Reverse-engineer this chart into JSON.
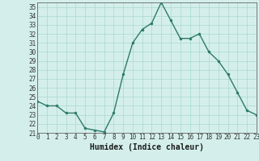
{
  "x": [
    0,
    1,
    2,
    3,
    4,
    5,
    6,
    7,
    8,
    9,
    10,
    11,
    12,
    13,
    14,
    15,
    16,
    17,
    18,
    19,
    20,
    21,
    22,
    23
  ],
  "y": [
    24.5,
    24.0,
    24.0,
    23.2,
    23.2,
    21.5,
    21.3,
    21.1,
    23.2,
    27.5,
    31.0,
    32.5,
    33.2,
    35.5,
    33.5,
    31.5,
    31.5,
    32.0,
    30.0,
    29.0,
    27.5,
    25.5,
    23.5,
    23.0
  ],
  "line_color": "#2d7a6a",
  "marker_color": "#2d7a6a",
  "bg_color": "#d4efeb",
  "grid_color": "#aad8d0",
  "xlabel": "Humidex (Indice chaleur)",
  "ylim": [
    21,
    35.5
  ],
  "xlim": [
    0,
    23
  ],
  "yticks": [
    21,
    22,
    23,
    24,
    25,
    26,
    27,
    28,
    29,
    30,
    31,
    32,
    33,
    34,
    35
  ],
  "xticks": [
    0,
    1,
    2,
    3,
    4,
    5,
    6,
    7,
    8,
    9,
    10,
    11,
    12,
    13,
    14,
    15,
    16,
    17,
    18,
    19,
    20,
    21,
    22,
    23
  ],
  "xlabel_fontsize": 7,
  "tick_fontsize": 5.5,
  "line_width": 1.0,
  "marker_size": 2.2
}
